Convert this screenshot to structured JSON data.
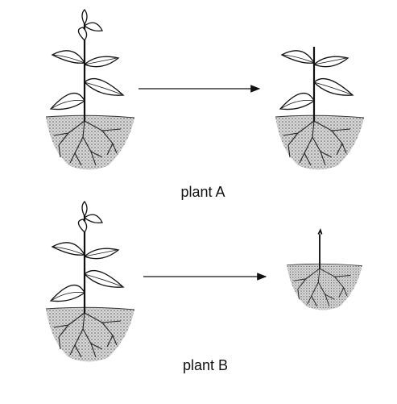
{
  "rows": [
    {
      "label": "plant A"
    },
    {
      "label": "plant B"
    }
  ]
}
